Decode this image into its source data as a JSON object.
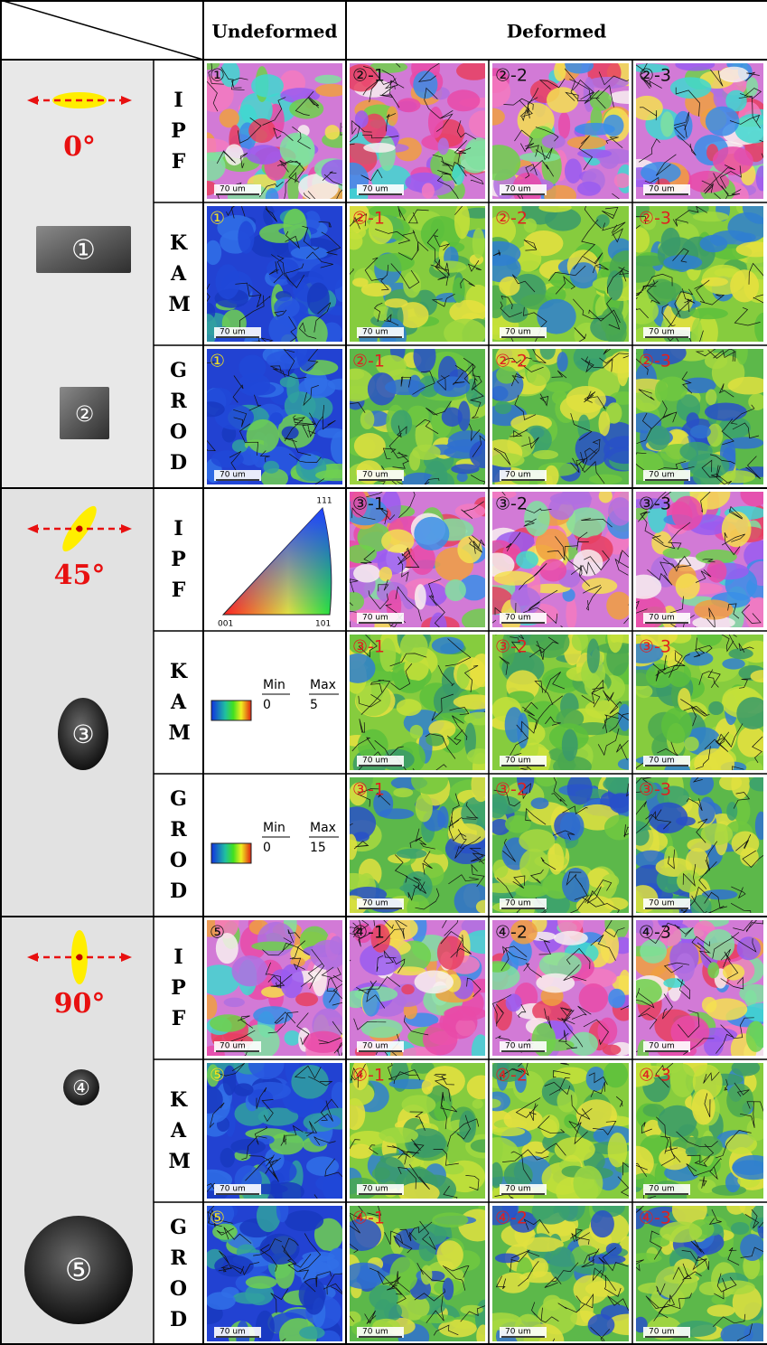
{
  "header": {
    "undeformed": "Undeformed",
    "deformed": "Deformed"
  },
  "scale_bar": "70 um",
  "groups": [
    {
      "angle": "0°",
      "samples": [
        "①",
        "②"
      ],
      "rows": [
        {
          "label": "IPF",
          "undeformed": "①",
          "deformed": [
            "②-1",
            "②-2",
            "②-3"
          ]
        },
        {
          "label": "KAM",
          "undeformed": "①",
          "deformed": [
            "②-1",
            "②-2",
            "②-3"
          ]
        },
        {
          "label": "GROD",
          "undeformed": "①",
          "deformed": [
            "②-1",
            "②-2",
            "②-3"
          ]
        }
      ]
    },
    {
      "angle": "45°",
      "samples": [
        "③"
      ],
      "rows": [
        {
          "label": "IPF",
          "key": {
            "top": "111",
            "left": "001",
            "right": "101"
          },
          "deformed": [
            "③-1",
            "③-2",
            "③-3"
          ]
        },
        {
          "label": "KAM",
          "key": {
            "min_label": "Min",
            "max_label": "Max",
            "min": 0,
            "max": 5
          },
          "deformed": [
            "③-1",
            "③-2",
            "③-3"
          ]
        },
        {
          "label": "GROD",
          "key": {
            "min_label": "Min",
            "max_label": "Max",
            "min": 0,
            "max": 15
          },
          "deformed": [
            "③-1",
            "③-2",
            "③-3"
          ]
        }
      ]
    },
    {
      "angle": "90°",
      "samples": [
        "④",
        "⑤"
      ],
      "rows": [
        {
          "label": "IPF",
          "undeformed": "⑤",
          "deformed": [
            "④-1",
            "④-2",
            "④-3"
          ]
        },
        {
          "label": "KAM",
          "undeformed": "⑤",
          "deformed": [
            "④-1",
            "④-2",
            "④-3"
          ]
        },
        {
          "label": "GROD",
          "undeformed": "⑤",
          "deformed": [
            "④-1",
            "④-2",
            "④-3"
          ]
        }
      ]
    }
  ]
}
